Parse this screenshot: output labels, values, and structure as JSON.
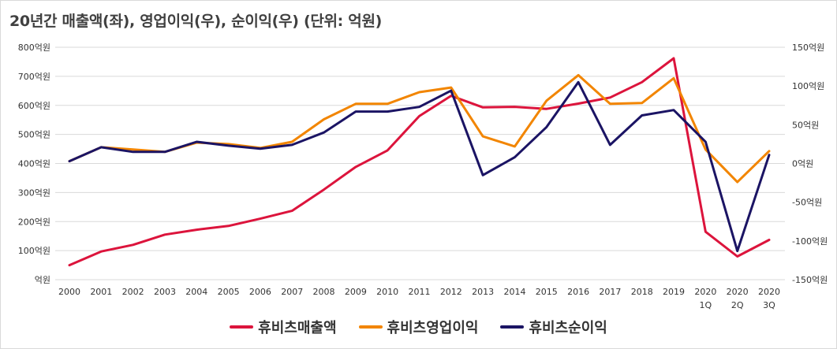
{
  "chart_data": {
    "type": "line",
    "title": "20년간 매출액(좌), 영업이익(우), 순이익(우) (단위: 억원)",
    "categories": [
      "2000",
      "2001",
      "2002",
      "2003",
      "2004",
      "2005",
      "2006",
      "2007",
      "2008",
      "2009",
      "2010",
      "2011",
      "2012",
      "2013",
      "2014",
      "2015",
      "2016",
      "2017",
      "2018",
      "2019",
      "2020\n1Q",
      "2020\n2Q",
      "2020\n3Q"
    ],
    "y_left": {
      "ylim": [
        0,
        800
      ],
      "ticks": [
        "억원",
        "100억원",
        "200억원",
        "300억원",
        "400억원",
        "500억원",
        "600억원",
        "700억원",
        "800억원"
      ]
    },
    "y_right": {
      "ylim": [
        -150,
        150
      ],
      "ticks": [
        "-150억원",
        "-100억원",
        "-50억원",
        "0억원",
        "50억원",
        "100억원",
        "150억원"
      ]
    },
    "grid": true,
    "legend": "bottom",
    "series": [
      {
        "name": "휴비츠매출액",
        "axis": "left",
        "color": "#dc143c",
        "values": [
          50,
          97,
          120,
          155,
          172,
          185,
          210,
          237,
          310,
          388,
          445,
          563,
          633,
          593,
          595,
          588,
          606,
          627,
          680,
          762,
          165,
          80,
          137
        ]
      },
      {
        "name": "휴비츠영업이익",
        "axis": "right",
        "color": "#f28500",
        "values": [
          3,
          21,
          18,
          15,
          27,
          25,
          20,
          28,
          57,
          77,
          77,
          92,
          98,
          35,
          22,
          81,
          114,
          77,
          78,
          110,
          18,
          -24,
          16
        ]
      },
      {
        "name": "휴비츠순이익",
        "axis": "right",
        "color": "#1b1464",
        "values": [
          3,
          21,
          15,
          15,
          28,
          23,
          19,
          24,
          40,
          67,
          67,
          73,
          94,
          -15,
          8,
          47,
          105,
          24,
          62,
          69,
          28,
          -113,
          11
        ]
      }
    ]
  }
}
